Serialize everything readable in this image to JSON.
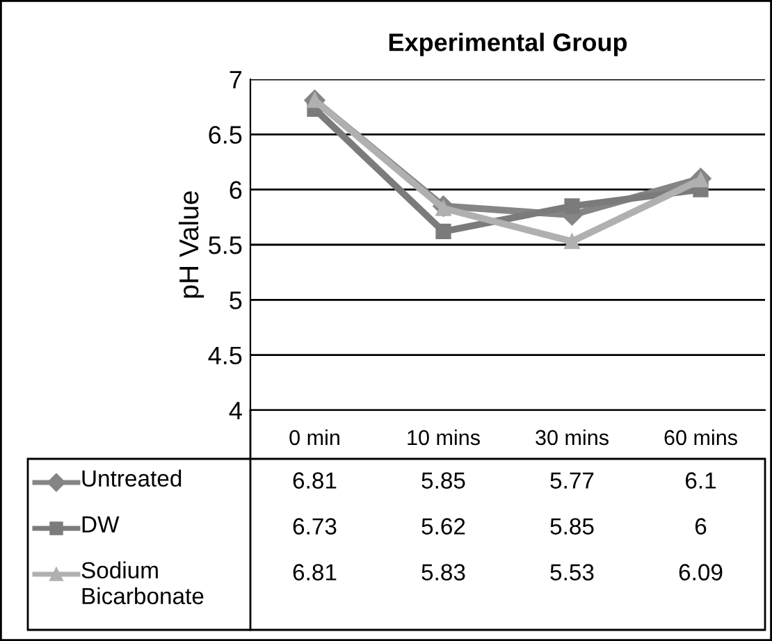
{
  "chart_data": {
    "type": "line",
    "title": "Experimental Group",
    "ylabel": "pH Value",
    "categories": [
      "0 min",
      "10 mins",
      "30 mins",
      "60 mins"
    ],
    "series": [
      {
        "name": "Untreated",
        "color": "#858585",
        "marker": "diamond",
        "values": [
          6.81,
          5.85,
          5.77,
          6.1
        ]
      },
      {
        "name": "DW",
        "color": "#7b7b7b",
        "marker": "square",
        "values": [
          6.73,
          5.62,
          5.85,
          6
        ]
      },
      {
        "name": "Sodium Bicarbonate",
        "color": "#b0b0b0",
        "marker": "triangle",
        "values": [
          6.81,
          5.83,
          5.53,
          6.09
        ]
      }
    ],
    "ylim": [
      4,
      7
    ],
    "yticks": [
      4,
      4.5,
      5,
      5.5,
      6,
      6.5,
      7
    ],
    "grid": "y",
    "legend": "bottom left",
    "data_labels": true
  }
}
